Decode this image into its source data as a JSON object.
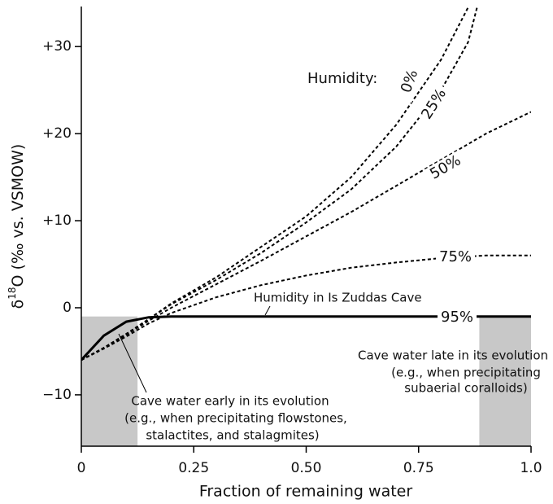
{
  "chart_data": {
    "type": "line",
    "x_label": "Fraction of remaining water",
    "y_label": [
      "δ",
      "18",
      "O (‰ vs. VSMOW)"
    ],
    "x": [
      0,
      0.05,
      0.1,
      0.15,
      0.2,
      0.3,
      0.4,
      0.5,
      0.6,
      0.7,
      0.8,
      0.86,
      0.88,
      0.9,
      1.0
    ],
    "series": [
      {
        "name": "0%",
        "color": "#000000",
        "dashed": true,
        "values": [
          -6,
          -4.6,
          -3.0,
          -1.3,
          0.5,
          3.5,
          7,
          10.5,
          15,
          21,
          28.5,
          34.5,
          null,
          null,
          null
        ]
      },
      {
        "name": "25%",
        "color": "#000000",
        "dashed": true,
        "values": [
          -6,
          -4.6,
          -3.0,
          -1.3,
          0.4,
          3.2,
          6.3,
          9.8,
          13.6,
          18.5,
          25,
          30.5,
          34.5,
          null,
          null
        ]
      },
      {
        "name": "50%",
        "color": "#000000",
        "dashed": true,
        "values": [
          -6,
          -4.6,
          -3.1,
          -1.5,
          0,
          2.7,
          5.4,
          8.2,
          11,
          14,
          17,
          18.8,
          19.4,
          20,
          22.5
        ]
      },
      {
        "name": "75%",
        "color": "#000000",
        "dashed": true,
        "values": [
          -6,
          -4.7,
          -3.3,
          -1.8,
          -0.6,
          1.2,
          2.6,
          3.7,
          4.6,
          5.2,
          5.7,
          5.9,
          5.95,
          6,
          6
        ]
      },
      {
        "name": "95%",
        "color": "#000000",
        "dashed": false,
        "values": [
          -6,
          -3.2,
          -1.6,
          -1.1,
          -1,
          -1,
          -1,
          -1,
          -1,
          -1,
          -1,
          -1,
          -1,
          -1,
          -1
        ]
      }
    ],
    "shaded_regions": [
      [
        0,
        0.125
      ],
      [
        0.885,
        1.0
      ]
    ],
    "shade_color": "#c8c8c8",
    "xlim": [
      0,
      1.0
    ],
    "ylim": [
      -15.9,
      34.6
    ],
    "xticks": [
      0,
      0.25,
      {
        "value": 0.5,
        "label": "0.50"
      },
      0.75,
      {
        "value": 1.0,
        "label": "1.0"
      }
    ],
    "yticks": [
      {
        "value": -10,
        "label": "−10"
      },
      0,
      {
        "value": 10,
        "label": "+10"
      },
      {
        "value": 20,
        "label": "+20"
      },
      {
        "value": 30,
        "label": "+30"
      }
    ],
    "annotations": [
      "Humidity:",
      "Humidity in Is Zuddas Cave",
      "Cave water late in its evolution",
      "(e.g., when precipitating",
      "subaerial coralloids)",
      "Cave water early in its evolution",
      "(e.g., when precipitating flowstones,",
      "stalactites, and stalagmites)"
    ]
  }
}
